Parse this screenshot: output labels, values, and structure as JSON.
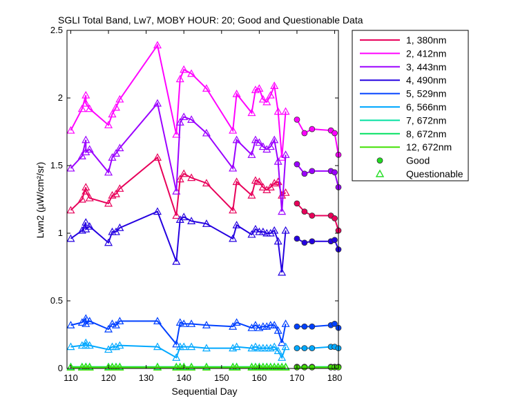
{
  "chart_data": {
    "type": "line",
    "title": "SGLI Total Band, Lw7, MOBY HOUR: 20;  Good and Questionable Data",
    "xlabel": "Sequential Day",
    "ylabel": "Lwn2 (µW/cm²/sr)",
    "xlim": [
      109,
      181
    ],
    "ylim": [
      0,
      2.5
    ],
    "xticks": [
      110,
      120,
      130,
      140,
      150,
      160,
      170,
      180
    ],
    "xtick_labels": [
      "110",
      "120",
      "130",
      "140",
      "150",
      "160",
      "170",
      "180"
    ],
    "yticks": [
      0,
      0.5,
      1,
      1.5,
      2,
      2.5
    ],
    "ytick_labels": [
      "0",
      "0.5",
      "1",
      "1.5",
      "2",
      "2.5"
    ],
    "grid": false,
    "legend_position": "outside-top-right",
    "x_questionable": [
      110,
      113,
      114,
      114,
      115,
      120,
      121,
      122,
      123,
      133,
      138,
      139,
      140,
      142,
      146,
      153,
      154,
      158,
      159,
      160,
      161,
      162,
      163,
      164,
      165,
      166,
      167
    ],
    "x_good": [
      170,
      172,
      174,
      179,
      180,
      181
    ],
    "series": [
      {
        "name": "1, 380nm",
        "color": "#e8005a",
        "q": [
          1.17,
          1.25,
          1.34,
          1.31,
          1.26,
          1.22,
          1.28,
          1.29,
          1.33,
          1.56,
          1.13,
          1.4,
          1.44,
          1.41,
          1.37,
          1.17,
          1.38,
          1.28,
          1.39,
          1.38,
          1.34,
          1.32,
          1.34,
          1.37,
          1.38,
          1.28,
          1.3
        ],
        "g": [
          1.22,
          1.16,
          1.13,
          1.13,
          1.11,
          1.02
        ]
      },
      {
        "name": "2, 412nm",
        "color": "#ff00ff",
        "q": [
          1.76,
          1.92,
          2.02,
          1.96,
          1.92,
          1.8,
          1.88,
          1.93,
          1.99,
          2.39,
          1.73,
          2.14,
          2.21,
          2.18,
          2.07,
          1.76,
          2.03,
          1.89,
          2.06,
          2.07,
          1.99,
          1.97,
          2.02,
          2.09,
          1.9,
          1.56,
          1.9
        ],
        "g": [
          1.84,
          1.74,
          1.77,
          1.76,
          1.74,
          1.58
        ]
      },
      {
        "name": "3, 443nm",
        "color": "#9b00ff",
        "q": [
          1.48,
          1.57,
          1.69,
          1.6,
          1.62,
          1.45,
          1.56,
          1.59,
          1.63,
          1.96,
          1.31,
          1.82,
          1.86,
          1.84,
          1.74,
          1.48,
          1.69,
          1.58,
          1.69,
          1.67,
          1.64,
          1.62,
          1.64,
          1.69,
          1.53,
          1.16,
          1.58
        ],
        "g": [
          1.51,
          1.44,
          1.46,
          1.46,
          1.45,
          1.34
        ]
      },
      {
        "name": "4, 490nm",
        "color": "#2400e0",
        "q": [
          0.96,
          1.02,
          1.08,
          1.03,
          1.05,
          0.93,
          1.01,
          1.01,
          1.04,
          1.16,
          0.79,
          1.1,
          1.12,
          1.09,
          1.07,
          0.96,
          1.06,
          0.99,
          1.03,
          1.01,
          1.01,
          1.0,
          1.0,
          1.02,
          0.94,
          0.71,
          1.02
        ],
        "g": [
          0.96,
          0.93,
          0.94,
          0.94,
          0.95,
          0.88
        ]
      },
      {
        "name": "5, 529nm",
        "color": "#0040ff",
        "q": [
          0.32,
          0.34,
          0.37,
          0.33,
          0.35,
          0.29,
          0.33,
          0.32,
          0.35,
          0.35,
          0.18,
          0.34,
          0.33,
          0.33,
          0.32,
          0.31,
          0.34,
          0.3,
          0.32,
          0.3,
          0.31,
          0.31,
          0.32,
          0.32,
          0.28,
          0.19,
          0.33
        ],
        "g": [
          0.31,
          0.31,
          0.31,
          0.32,
          0.33,
          0.3
        ]
      },
      {
        "name": "6, 566nm",
        "color": "#00a8ff",
        "q": [
          0.16,
          0.17,
          0.19,
          0.17,
          0.17,
          0.14,
          0.16,
          0.16,
          0.17,
          0.16,
          0.08,
          0.16,
          0.16,
          0.16,
          0.15,
          0.15,
          0.16,
          0.15,
          0.16,
          0.15,
          0.15,
          0.15,
          0.15,
          0.16,
          0.13,
          0.08,
          0.16
        ],
        "g": [
          0.15,
          0.15,
          0.15,
          0.16,
          0.16,
          0.15
        ]
      },
      {
        "name": "7, 672nm",
        "color": "#00e0a0",
        "q": [
          0.012,
          0.012,
          0.012,
          0.012,
          0.012,
          0.012,
          0.012,
          0.012,
          0.012,
          0.012,
          0.012,
          0.012,
          0.012,
          0.012,
          0.012,
          0.012,
          0.012,
          0.012,
          0.012,
          0.012,
          0.012,
          0.012,
          0.012,
          0.012,
          0.012,
          0.012,
          0.012
        ],
        "g": [
          0.012,
          0.012,
          0.012,
          0.012,
          0.012,
          0.012
        ]
      },
      {
        "name": "8, 672nm",
        "color": "#00e060",
        "q": [
          0.01,
          0.01,
          0.01,
          0.01,
          0.01,
          0.01,
          0.01,
          0.01,
          0.01,
          0.01,
          0.01,
          0.01,
          0.01,
          0.01,
          0.01,
          0.01,
          0.01,
          0.01,
          0.01,
          0.01,
          0.01,
          0.01,
          0.01,
          0.01,
          0.01,
          0.01,
          0.01
        ],
        "g": [
          0.01,
          0.01,
          0.01,
          0.01,
          0.01,
          0.01
        ]
      },
      {
        "name": "12, 672nm",
        "color": "#40e000",
        "q": [
          0.008,
          0.008,
          0.008,
          0.008,
          0.008,
          0.008,
          0.008,
          0.008,
          0.008,
          0.008,
          0.008,
          0.008,
          0.008,
          0.008,
          0.008,
          0.008,
          0.008,
          0.008,
          0.008,
          0.008,
          0.008,
          0.008,
          0.008,
          0.008,
          0.008,
          0.008,
          0.008
        ],
        "g": [
          0.008,
          0.008,
          0.008,
          0.008,
          0.008,
          0.008
        ]
      }
    ],
    "legend_markers": [
      {
        "label": "Good",
        "marker": "circle",
        "color": "#22dd22"
      },
      {
        "label": "Questionable",
        "marker": "triangle",
        "color": "#22dd22"
      }
    ]
  }
}
